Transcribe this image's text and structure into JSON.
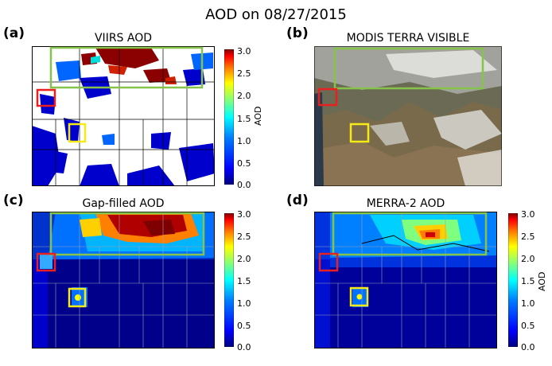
{
  "figure": {
    "title": "AOD on 08/27/2015"
  },
  "panels": [
    {
      "letter": "(a)",
      "title": "VIIRS AOD",
      "has_colorbar": true
    },
    {
      "letter": "(b)",
      "title": "MODIS TERRA VISIBLE",
      "has_colorbar": false
    },
    {
      "letter": "(c)",
      "title": "Gap-filled AOD",
      "has_colorbar": true
    },
    {
      "letter": "(d)",
      "title": "MERRA-2 AOD",
      "has_colorbar": true
    }
  ],
  "colorbar": {
    "label": "AOD",
    "ticks": [
      "3.0",
      "2.5",
      "2.0",
      "1.5",
      "1.0",
      "0.5",
      "0.0"
    ],
    "range": [
      0.0,
      3.0
    ],
    "colors": [
      "#00007f",
      "#0000ff",
      "#007fff",
      "#00ffff",
      "#7fff7f",
      "#ffff00",
      "#ff7f00",
      "#ff0000",
      "#7f0000"
    ]
  },
  "highlight_boxes": {
    "green": "#86c34a",
    "red": "#e8201f",
    "yellow": "#f5ea16"
  }
}
